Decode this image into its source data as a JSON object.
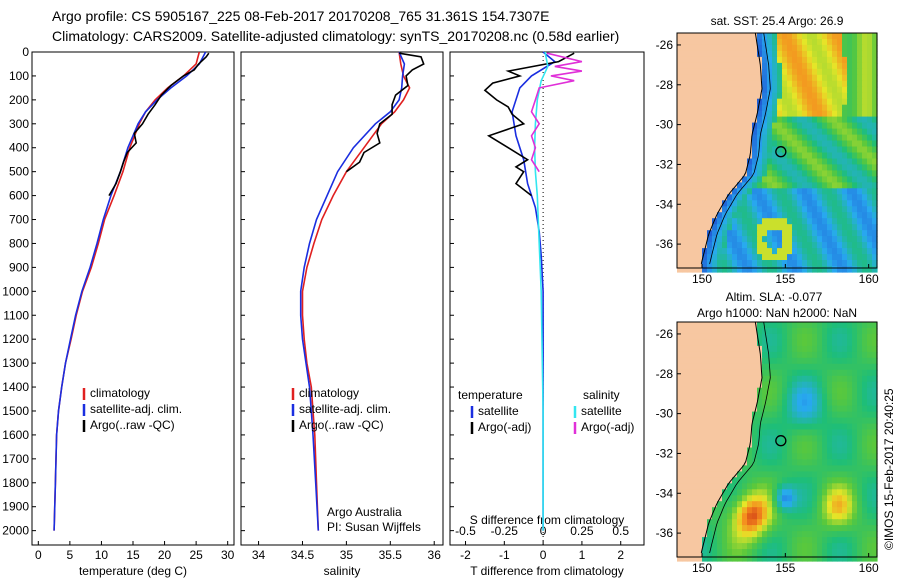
{
  "titles": {
    "line1": "Argo profile: CS 5905167_225 08-Feb-2017 20170208_765 31.361S 154.7307E",
    "line2": "Climatology: CARS2009. Satellite-adjusted climatology: synTS_20170208.nc (0.58d earlier)"
  },
  "map_titles": {
    "sst": "sat. SST: 25.4 Argo: 26.9",
    "sla_line1": "Altim. SLA: -0.077",
    "sla_line2": "Argo h1000: NaN h2000: NaN"
  },
  "side_text": "©IMOS 15-Feb-2017 20:40:25",
  "credit": {
    "line1": "Argo Australia",
    "line2": "PI: Susan Wijffels"
  },
  "colors": {
    "clim": "#e02020",
    "sat": "#1a2ee0",
    "argo": "#000000",
    "sat_s": "#33e6f0",
    "argo_s": "#e030d8",
    "land": "#f7c7a1"
  },
  "chart_data": [
    {
      "type": "line",
      "xlabel": "temperature (deg C)",
      "ylabel": "",
      "xlim": [
        -1,
        31
      ],
      "ylim": [
        2060,
        0
      ],
      "xticks": [
        0,
        5,
        10,
        15,
        20,
        25,
        30
      ],
      "yticks": [
        0,
        100,
        200,
        300,
        400,
        500,
        600,
        700,
        800,
        900,
        1000,
        1100,
        1200,
        1300,
        1400,
        1500,
        1600,
        1700,
        1800,
        1900,
        2000
      ],
      "legend": [
        "climatology",
        "satellite-adj. clim.",
        "Argo(..raw -QC)"
      ],
      "legend_position": "lower-middle",
      "series": [
        {
          "name": "climatology",
          "color": "#e02020",
          "x": [
            25.5,
            25,
            23,
            20.5,
            18.5,
            17,
            16,
            14.5,
            13.4,
            12,
            10.5,
            9.5,
            8.4,
            7,
            6,
            5.2,
            4.3,
            3.7,
            3.2,
            2.9,
            2.7,
            2.5
          ],
          "y": [
            0,
            50,
            100,
            150,
            200,
            250,
            300,
            400,
            500,
            600,
            700,
            800,
            900,
            1000,
            1100,
            1200,
            1300,
            1400,
            1500,
            1600,
            1800,
            2000
          ]
        },
        {
          "name": "satellite-adj. clim.",
          "color": "#1a2ee0",
          "x": [
            26.5,
            25.5,
            23.5,
            21,
            18.8,
            17,
            15.8,
            14.2,
            13,
            11.5,
            10.3,
            9.3,
            8.2,
            6.9,
            5.9,
            5.1,
            4.3,
            3.7,
            3.2,
            2.9,
            2.7,
            2.5
          ],
          "y": [
            0,
            50,
            100,
            150,
            200,
            250,
            300,
            400,
            500,
            600,
            700,
            800,
            900,
            1000,
            1100,
            1200,
            1300,
            1400,
            1500,
            1600,
            1800,
            2000
          ]
        },
        {
          "name": "Argo(..raw -QC)",
          "color": "#000000",
          "x": [
            27,
            26.6,
            25.4,
            24.7,
            23,
            21,
            19.5,
            18.5,
            17.4,
            16.5,
            15.2,
            15.5,
            14.1,
            13.5,
            13,
            12.3,
            11.2
          ],
          "y": [
            5,
            20,
            50,
            75,
            100,
            140,
            180,
            220,
            260,
            300,
            340,
            380,
            420,
            460,
            500,
            550,
            600
          ]
        }
      ]
    },
    {
      "type": "line",
      "xlabel": "salinity",
      "ylabel": "",
      "xlim": [
        33.8,
        36.1
      ],
      "ylim": [
        2060,
        0
      ],
      "xticks": [
        34,
        34.5,
        35,
        35.5,
        36
      ],
      "legend": [
        "climatology",
        "satellite-adj. clim.",
        "Argo(..raw -QC)"
      ],
      "legend_position": "lower-middle",
      "series": [
        {
          "name": "climatology",
          "color": "#e02020",
          "x": [
            35.6,
            35.62,
            35.65,
            35.72,
            35.65,
            35.55,
            35.4,
            35.2,
            35.0,
            34.85,
            34.72,
            34.63,
            34.55,
            34.5,
            34.5,
            34.52,
            34.55,
            34.6,
            34.62,
            34.64,
            34.66,
            34.68
          ],
          "y": [
            0,
            50,
            100,
            150,
            200,
            250,
            300,
            400,
            500,
            600,
            700,
            800,
            900,
            1000,
            1100,
            1200,
            1300,
            1400,
            1500,
            1600,
            1800,
            2000
          ]
        },
        {
          "name": "satellite-adj. clim.",
          "color": "#1a2ee0",
          "x": [
            35.6,
            35.66,
            35.64,
            35.63,
            35.6,
            35.5,
            35.33,
            35.08,
            34.9,
            34.78,
            34.66,
            34.58,
            34.52,
            34.48,
            34.48,
            34.5,
            34.54,
            34.58,
            34.6,
            34.62,
            34.65,
            34.68
          ],
          "y": [
            0,
            50,
            100,
            150,
            200,
            250,
            300,
            400,
            500,
            600,
            700,
            800,
            900,
            1000,
            1100,
            1200,
            1300,
            1400,
            1500,
            1600,
            1800,
            2000
          ]
        },
        {
          "name": "Argo(..raw -QC)",
          "color": "#000000",
          "x": [
            35.6,
            35.85,
            35.88,
            35.75,
            35.68,
            35.7,
            35.56,
            35.52,
            35.52,
            35.38,
            35.35,
            35.38,
            35.2,
            35.15,
            35.0
          ],
          "y": [
            5,
            20,
            50,
            75,
            100,
            140,
            180,
            220,
            260,
            300,
            340,
            380,
            420,
            460,
            500
          ]
        }
      ]
    },
    {
      "type": "line",
      "xlabel": "T difference from climatology",
      "xlabel_top": "S difference from climatology",
      "xlim": [
        -2.4,
        2.6
      ],
      "ylim": [
        2060,
        0
      ],
      "xticks": [
        -2,
        -1,
        0,
        1,
        2
      ],
      "xticks_s": [
        "-0.5",
        "-0.25",
        "0",
        "0.25",
        "0.5"
      ],
      "legend_headers": [
        "temperature",
        "salinity"
      ],
      "legend": [
        "satellite",
        "Argo(-adj)",
        "satellite",
        "Argo(-adj)"
      ],
      "series": [
        {
          "name": "satellite",
          "color": "#1a2ee0",
          "x": [
            0,
            0.3,
            -0.3,
            -0.6,
            -0.8,
            -0.7,
            -0.5,
            -0.4,
            -0.2,
            -0.1,
            -0.05,
            0,
            0
          ],
          "y": [
            0,
            40,
            100,
            150,
            250,
            350,
            450,
            550,
            650,
            750,
            850,
            1000,
            2000
          ]
        },
        {
          "name": "Argo(-adj)",
          "color": "#000000",
          "x": [
            0.8,
            0.4,
            -0.9,
            -0.6,
            -1.3,
            -1.5,
            -1.2,
            -0.9,
            -0.8,
            -0.5,
            -1.4,
            -0.9,
            -0.4,
            -0.7,
            -0.5,
            -0.7,
            -0.3
          ],
          "y": [
            5,
            40,
            80,
            100,
            130,
            160,
            200,
            230,
            260,
            300,
            350,
            400,
            450,
            480,
            500,
            550,
            600
          ]
        },
        {
          "name": "satellite",
          "color": "#33e6f0",
          "x": [
            0.05,
            0.12,
            -0.05,
            -0.15,
            -0.2,
            -0.22,
            -0.2,
            -0.15,
            -0.1,
            -0.05,
            0,
            0
          ],
          "y": [
            0,
            60,
            120,
            200,
            300,
            400,
            500,
            600,
            800,
            1000,
            1500,
            2000
          ]
        },
        {
          "name": "Argo(-adj)",
          "color": "#e030d8",
          "x": [
            0.1,
            1.0,
            0.3,
            1.0,
            0.2,
            0.8,
            -0.1,
            -0.2,
            -0.3,
            -0.1,
            -0.3,
            -0.2,
            -0.3,
            -0.1
          ],
          "y": [
            5,
            40,
            60,
            80,
            100,
            120,
            150,
            200,
            250,
            300,
            350,
            400,
            450,
            500
          ]
        }
      ]
    },
    {
      "type": "heatmap",
      "title": "sat. SST: 25.4 Argo: 26.9",
      "xlim": [
        148.5,
        160.5
      ],
      "ylim": [
        -37.2,
        -25.4
      ],
      "xticks": [
        150,
        155,
        160
      ],
      "yticks": [
        -26,
        -28,
        -30,
        -32,
        -34,
        -36
      ],
      "marker": {
        "lon": 154.73,
        "lat": -31.36
      }
    },
    {
      "type": "heatmap",
      "title": "Altim. SLA: -0.077",
      "xlim": [
        148.5,
        160.5
      ],
      "ylim": [
        -37.2,
        -25.4
      ],
      "xticks": [
        150,
        155,
        160
      ],
      "yticks": [
        -26,
        -28,
        -30,
        -32,
        -34,
        -36
      ],
      "marker": {
        "lon": 154.73,
        "lat": -31.36
      }
    }
  ]
}
